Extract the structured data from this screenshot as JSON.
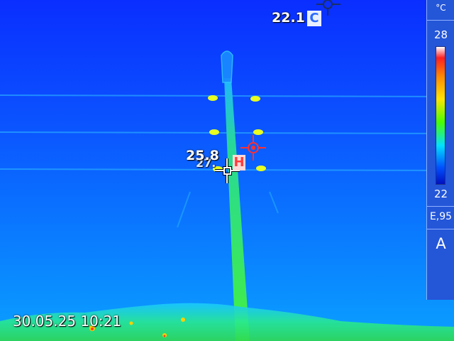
{
  "overlay": {
    "cold_spot_value": "22.1",
    "cold_spot_tag": "C",
    "spot_value": "25.8",
    "spot_value_shadow": "27.",
    "hot_spot_tag": "H",
    "datetime": "30.05.25 10:21"
  },
  "side_panel": {
    "unit": "°C",
    "scale_max": "28",
    "scale_min": "22",
    "emissivity": "E,95",
    "mode": "A"
  },
  "colors": {
    "background_cold": "#0a3cff",
    "pole_warm": "#3be86a",
    "hot_marker": "#ff4040",
    "cold_marker": "#203a70"
  },
  "icons": [
    "crosshair-cold-icon",
    "crosshair-hot-icon",
    "crosshair-spot-icon"
  ]
}
